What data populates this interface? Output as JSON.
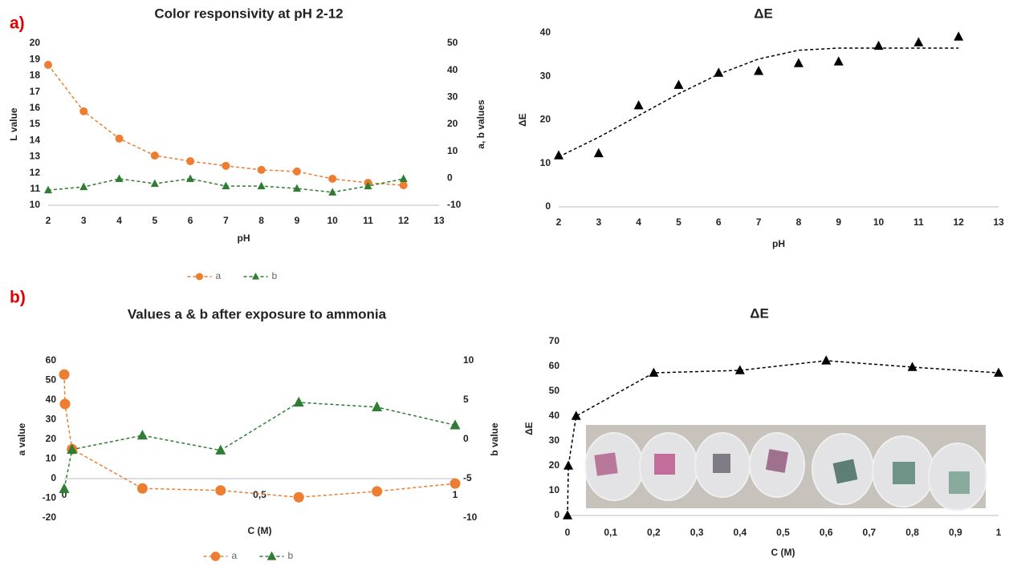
{
  "chart_data": [
    {
      "type": "line",
      "panel": "a)",
      "title": "Color responsivity at pH 2-12",
      "x": [
        2,
        3,
        4,
        5,
        6,
        7,
        8,
        9,
        10,
        11,
        12
      ],
      "xlim": [
        2,
        13
      ],
      "xticks": [
        2,
        3,
        4,
        5,
        6,
        7,
        8,
        9,
        10,
        11,
        12,
        13
      ],
      "ylim": [
        10,
        20
      ],
      "yticks": [
        10,
        11,
        12,
        13,
        14,
        15,
        16,
        17,
        18,
        19,
        20
      ],
      "y2lim": [
        -10,
        50
      ],
      "y2ticks": [
        -10,
        0,
        10,
        20,
        30,
        40,
        50
      ],
      "xlabel": "pH",
      "ylabel": "L value",
      "y2label": "a, b values",
      "legend": "bottom",
      "series": [
        {
          "name": "a",
          "color": "#ed7d31",
          "marker": "circle",
          "dashed": true,
          "axis": "y2",
          "values": [
            42,
            24.8,
            14.7,
            8.4,
            6.3,
            4.6,
            3.1,
            2.5,
            -0.2,
            -1.7,
            -2.6
          ]
        },
        {
          "name": "b",
          "color": "#2e7d32",
          "marker": "triangle",
          "dashed": true,
          "axis": "y2",
          "values": [
            -4.4,
            -3.2,
            -0.2,
            -2,
            -0.2,
            -2.9,
            -2.9,
            -3.8,
            -5.2,
            -2.9,
            -0.2
          ]
        }
      ]
    },
    {
      "type": "scatter",
      "title": "ΔE",
      "x": [
        2,
        3,
        4,
        5,
        6,
        7,
        8,
        9,
        10,
        11,
        12
      ],
      "xlim": [
        2,
        13
      ],
      "xticks": [
        2,
        3,
        4,
        5,
        6,
        7,
        8,
        9,
        10,
        11,
        12,
        13
      ],
      "ylim": [
        0,
        40
      ],
      "yticks": [
        0,
        10,
        20,
        30,
        40
      ],
      "xlabel": "pH",
      "ylabel": "ΔE",
      "series": [
        {
          "color": "#000000",
          "marker": "triangle",
          "line": false,
          "values": [
            11.8,
            12.3,
            23.3,
            28,
            30.8,
            31.2,
            33,
            33.4,
            37,
            37.8,
            39.1
          ]
        },
        {
          "color": "#000000",
          "marker": "none",
          "dashed": true,
          "values": [
            11.5,
            16,
            21,
            26,
            30.5,
            34,
            36,
            36.5,
            36.5,
            36.5,
            36.5
          ]
        }
      ]
    },
    {
      "type": "line",
      "panel": "b)",
      "title": "Values a & b after exposure to ammonia",
      "x": [
        0,
        0.002,
        0.02,
        0.2,
        0.4,
        0.6,
        0.8,
        1
      ],
      "xlim": [
        0,
        1
      ],
      "xticks": [
        0,
        {
          "value": 0.5,
          "label": "0,5"
        },
        1
      ],
      "ylim": [
        -20,
        60
      ],
      "yticks": [
        -20,
        -10,
        0,
        10,
        20,
        30,
        40,
        50,
        60
      ],
      "y2lim": [
        -10,
        10
      ],
      "y2ticks": [
        -10,
        -5,
        0,
        5,
        10
      ],
      "xlabel": "C (M)",
      "ylabel": "a value",
      "y2label": "b value",
      "legend": "bottom",
      "series": [
        {
          "name": "a",
          "color": "#ed7d31",
          "marker": "circle",
          "dashed": true,
          "values": [
            53,
            38,
            15,
            -5,
            -6,
            -9.5,
            -6.5,
            -2.5
          ]
        },
        {
          "name": "b",
          "color": "#2e7d32",
          "marker": "triangle",
          "dashed": true,
          "axis": "y2",
          "x": [
            0,
            0.02,
            0.2,
            0.4,
            0.6,
            0.8,
            1
          ],
          "values": [
            -6.3,
            -1.3,
            0.5,
            -1.4,
            4.7,
            4.1,
            1.8
          ]
        }
      ]
    },
    {
      "type": "line",
      "title": "ΔE",
      "x": [
        0,
        0.002,
        0.02,
        0.2,
        0.4,
        0.6,
        0.8,
        1
      ],
      "xlim": [
        0,
        1
      ],
      "xticks": [
        0,
        {
          "value": 0.1,
          "label": "0,1"
        },
        {
          "value": 0.2,
          "label": "0,2"
        },
        {
          "value": 0.3,
          "label": "0,3"
        },
        {
          "value": 0.4,
          "label": "0,4"
        },
        {
          "value": 0.5,
          "label": "0,5"
        },
        {
          "value": 0.6,
          "label": "0,6"
        },
        {
          "value": 0.7,
          "label": "0,7"
        },
        {
          "value": 0.8,
          "label": "0,8"
        },
        {
          "value": 0.9,
          "label": "0,9"
        },
        1
      ],
      "ylim": [
        0,
        70
      ],
      "yticks": [
        0,
        10,
        20,
        30,
        40,
        50,
        60,
        70
      ],
      "xlabel": "C (M)",
      "ylabel": "ΔE",
      "series": [
        {
          "color": "#000000",
          "marker": "triangle",
          "dashed": true,
          "values": [
            0,
            20,
            40,
            57.4,
            58.4,
            62.3,
            59.7,
            57.4
          ]
        }
      ]
    }
  ]
}
